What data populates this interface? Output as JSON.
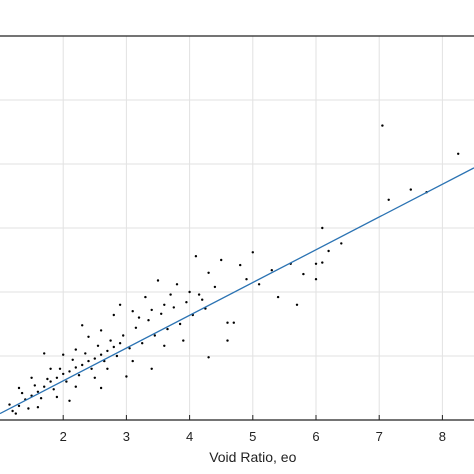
{
  "chart_data": {
    "type": "scatter",
    "title": "",
    "xlabel": "Void Ratio, eo",
    "ylabel": "",
    "xlim": [
      1.0,
      8.5
    ],
    "ylim": [
      0.0,
      3.0
    ],
    "x_ticks": [
      2,
      3,
      4,
      5,
      6,
      7,
      8
    ],
    "x_tick_labels": [
      "2",
      "3",
      "4",
      "5",
      "6",
      "7",
      "8"
    ],
    "y_gridlines": [
      0.5,
      1.0,
      1.5,
      2.0,
      2.5
    ],
    "grid": true,
    "legend": "none",
    "marker_color": "#000000",
    "fit_line": {
      "x": [
        1.0,
        8.5
      ],
      "y": [
        0.05,
        1.97
      ],
      "color": "#2b73b3"
    },
    "series": [
      {
        "values": [
          [
            1.2,
            0.07
          ],
          [
            1.3,
            0.11
          ],
          [
            1.4,
            0.16
          ],
          [
            1.5,
            0.19
          ],
          [
            1.6,
            0.22
          ],
          [
            1.7,
            0.26
          ],
          [
            1.8,
            0.3
          ],
          [
            1.9,
            0.33
          ],
          [
            2.0,
            0.36
          ],
          [
            2.1,
            0.38
          ],
          [
            2.2,
            0.41
          ],
          [
            2.3,
            0.43
          ],
          [
            2.4,
            0.46
          ],
          [
            2.5,
            0.48
          ],
          [
            2.6,
            0.51
          ],
          [
            2.7,
            0.54
          ],
          [
            2.8,
            0.57
          ],
          [
            2.9,
            0.6
          ],
          [
            1.15,
            0.12
          ],
          [
            1.25,
            0.05
          ],
          [
            1.35,
            0.21
          ],
          [
            1.45,
            0.09
          ],
          [
            1.55,
            0.27
          ],
          [
            1.65,
            0.17
          ],
          [
            1.75,
            0.32
          ],
          [
            1.85,
            0.24
          ],
          [
            1.95,
            0.4
          ],
          [
            2.05,
            0.3
          ],
          [
            2.15,
            0.47
          ],
          [
            2.25,
            0.35
          ],
          [
            2.35,
            0.52
          ],
          [
            2.45,
            0.4
          ],
          [
            2.55,
            0.58
          ],
          [
            2.65,
            0.46
          ],
          [
            2.75,
            0.62
          ],
          [
            2.85,
            0.5
          ],
          [
            2.95,
            0.66
          ],
          [
            3.05,
            0.56
          ],
          [
            3.15,
            0.72
          ],
          [
            3.25,
            0.6
          ],
          [
            3.35,
            0.78
          ],
          [
            3.45,
            0.66
          ],
          [
            3.55,
            0.83
          ],
          [
            3.65,
            0.71
          ],
          [
            3.75,
            0.88
          ],
          [
            3.85,
            0.75
          ],
          [
            3.95,
            0.92
          ],
          [
            4.05,
            0.82
          ],
          [
            4.15,
            0.98
          ],
          [
            4.25,
            0.87
          ],
          [
            1.7,
            0.52
          ],
          [
            2.3,
            0.74
          ],
          [
            2.8,
            0.82
          ],
          [
            3.3,
            0.96
          ],
          [
            3.5,
            1.09
          ],
          [
            3.8,
            1.06
          ],
          [
            4.1,
            1.28
          ],
          [
            4.3,
            1.15
          ],
          [
            4.5,
            1.25
          ],
          [
            4.8,
            1.21
          ],
          [
            5.0,
            1.31
          ],
          [
            2.1,
            0.15
          ],
          [
            2.6,
            0.25
          ],
          [
            3.0,
            0.34
          ],
          [
            3.4,
            0.4
          ],
          [
            3.9,
            0.62
          ],
          [
            4.3,
            0.49
          ],
          [
            4.6,
            0.62
          ],
          [
            4.7,
            0.76
          ],
          [
            5.4,
            0.96
          ],
          [
            5.7,
            0.9
          ],
          [
            6.0,
            1.1
          ],
          [
            6.1,
            1.5
          ],
          [
            6.2,
            1.32
          ],
          [
            6.4,
            1.38
          ],
          [
            5.6,
            1.22
          ],
          [
            5.3,
            1.17
          ],
          [
            7.05,
            2.3
          ],
          [
            7.15,
            1.72
          ],
          [
            7.5,
            1.8
          ],
          [
            7.75,
            1.78
          ],
          [
            8.25,
            2.08
          ],
          [
            2.2,
            0.55
          ],
          [
            2.4,
            0.65
          ],
          [
            2.6,
            0.7
          ],
          [
            2.9,
            0.9
          ],
          [
            3.1,
            0.85
          ],
          [
            3.2,
            0.8
          ],
          [
            3.4,
            0.86
          ],
          [
            3.6,
            0.9
          ],
          [
            3.7,
            0.98
          ],
          [
            4.0,
            1.0
          ],
          [
            4.2,
            0.94
          ],
          [
            4.4,
            1.04
          ],
          [
            4.9,
            1.1
          ],
          [
            1.5,
            0.33
          ],
          [
            1.8,
            0.4
          ],
          [
            2.0,
            0.51
          ],
          [
            1.3,
            0.25
          ],
          [
            1.6,
            0.1
          ],
          [
            1.9,
            0.18
          ],
          [
            2.2,
            0.26
          ],
          [
            2.5,
            0.33
          ],
          [
            2.7,
            0.4
          ],
          [
            3.1,
            0.46
          ],
          [
            3.6,
            0.58
          ],
          [
            4.6,
            0.76
          ],
          [
            5.1,
            1.06
          ],
          [
            5.8,
            1.14
          ],
          [
            6.0,
            1.22
          ],
          [
            6.1,
            1.23
          ]
        ]
      }
    ]
  }
}
